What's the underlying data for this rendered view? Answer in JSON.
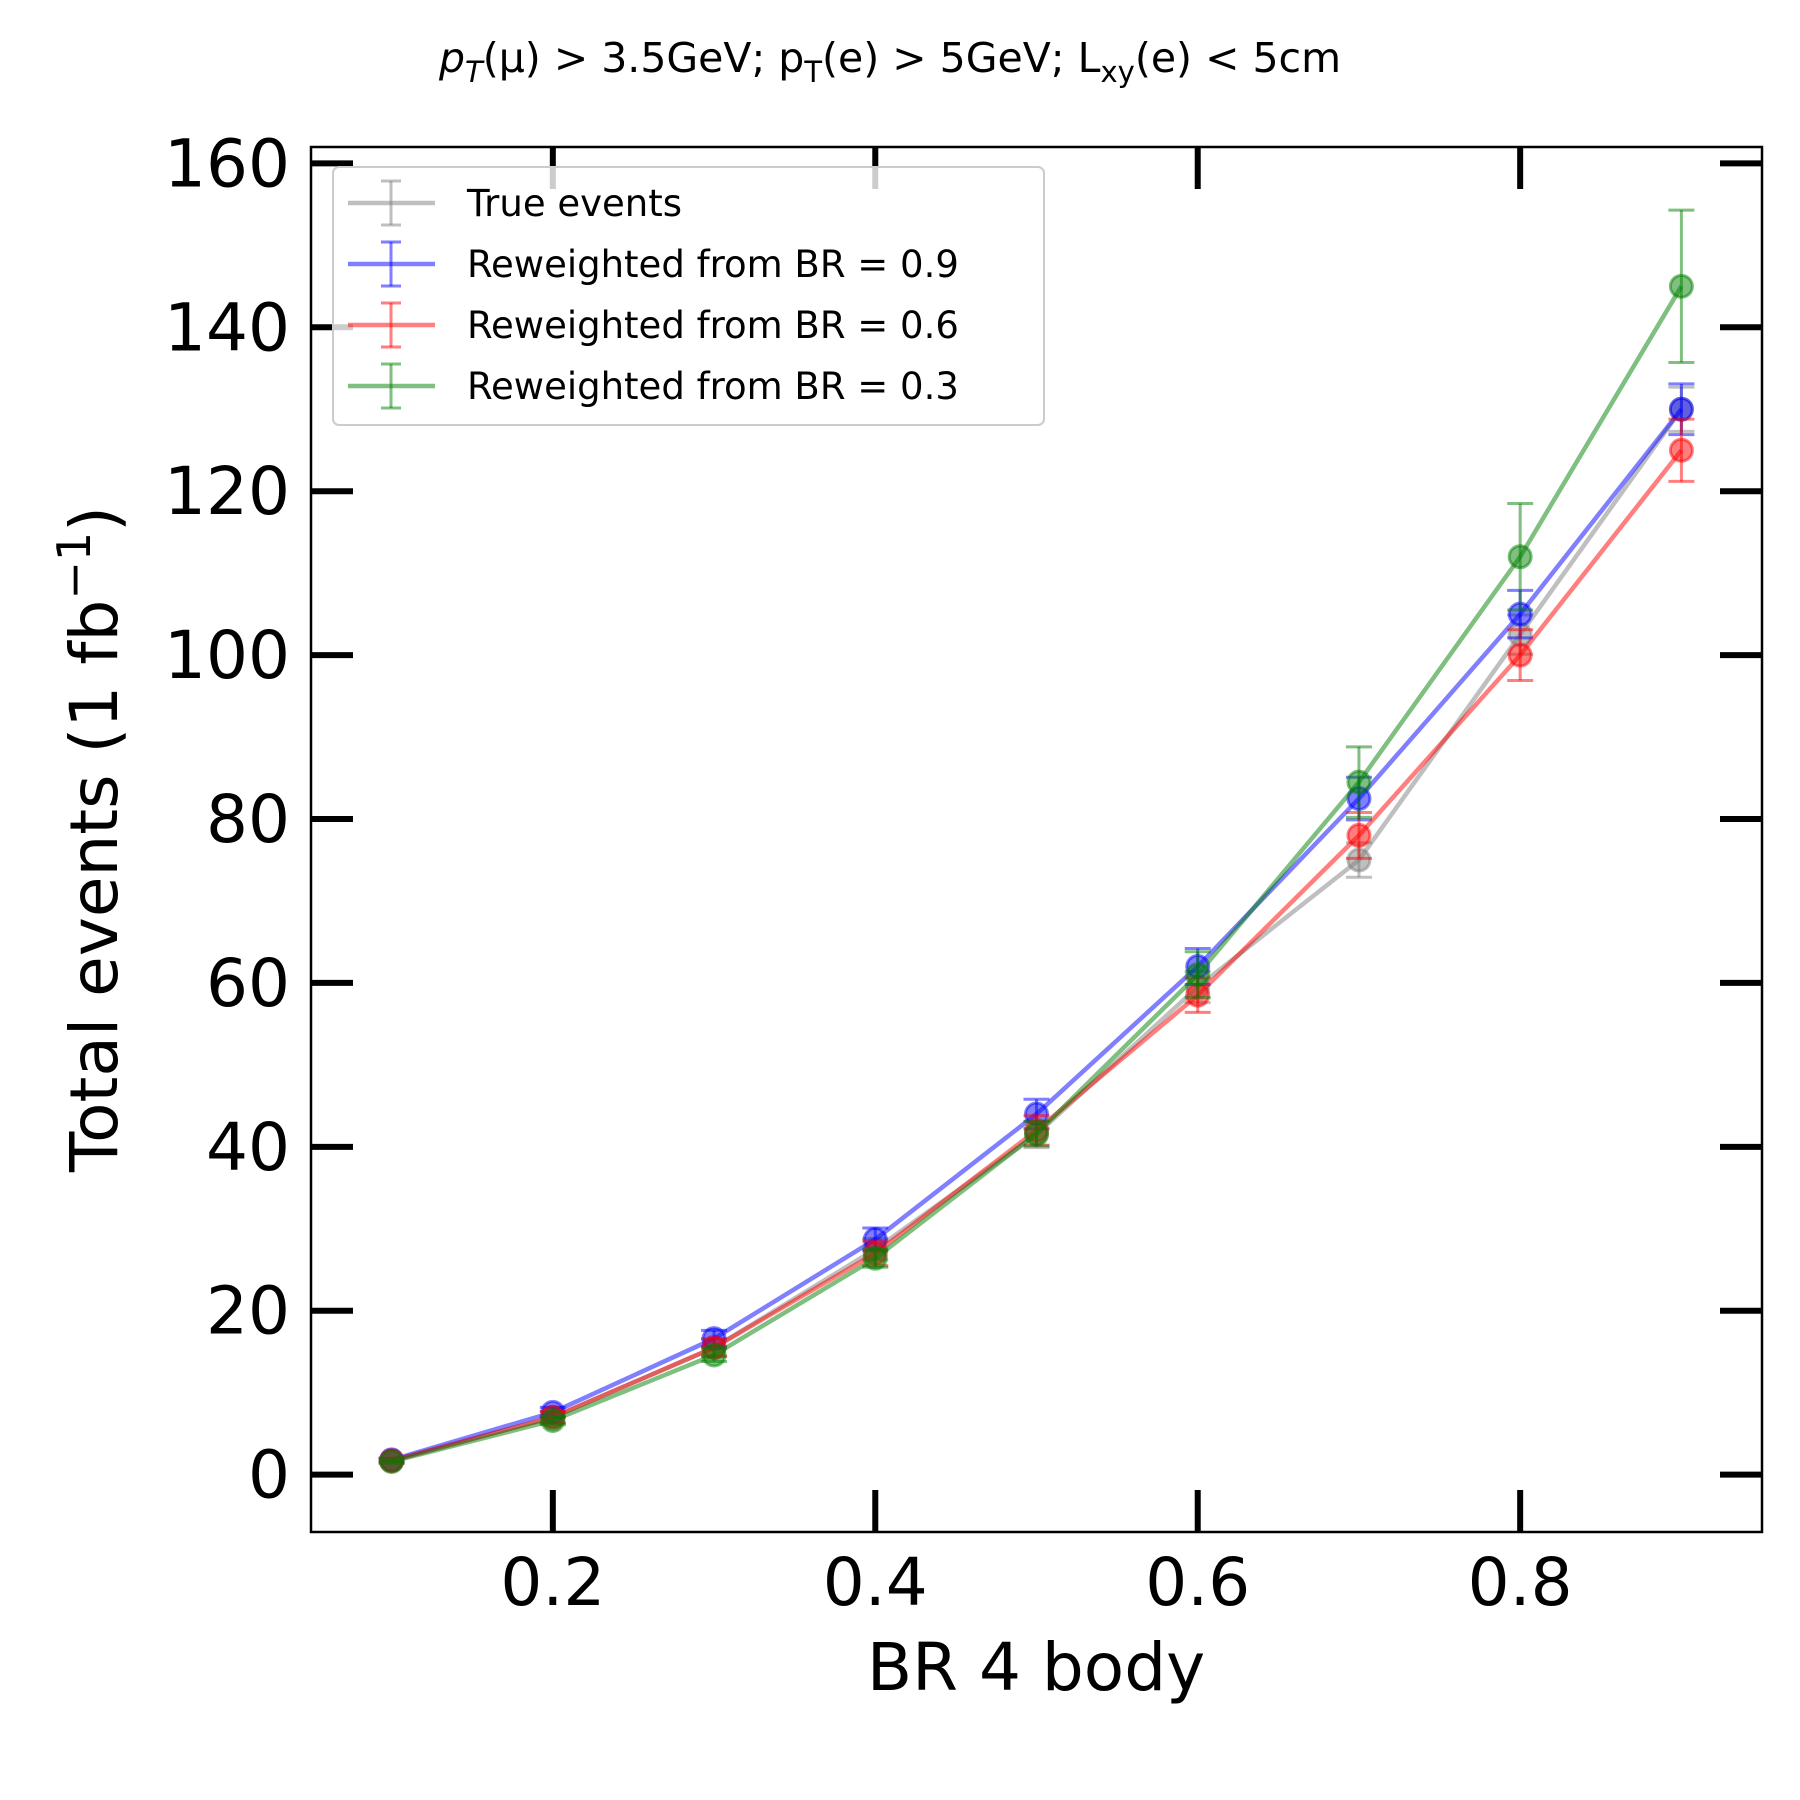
{
  "chart_data": {
    "type": "line",
    "title": "p_T(μ) > 3.5GeV; p_T(e) > 5GeV; L_xy(e) < 5cm",
    "title_parts": {
      "p1": "p",
      "s1": "T",
      "t1": "(μ) > 3.5GeV; p",
      "s2": "T",
      "t2": "(e) > 5GeV; L",
      "s3": "xy",
      "t3": "(e) < 5cm"
    },
    "xlabel": "BR 4 body",
    "ylabel": "Total events (1 fb",
    "ylabel_sup": "−1",
    "ylabel_close": ")",
    "xlim": [
      0.05,
      0.95
    ],
    "ylim": [
      -7,
      162
    ],
    "xticks": [
      0.2,
      0.4,
      0.6,
      0.8
    ],
    "xtick_labels": [
      "0.2",
      "0.4",
      "0.6",
      "0.8"
    ],
    "yticks": [
      0,
      20,
      40,
      60,
      80,
      100,
      120,
      140,
      160
    ],
    "ytick_labels": [
      "0",
      "20",
      "40",
      "60",
      "80",
      "100",
      "120",
      "140",
      "160"
    ],
    "grid": false,
    "legend_position": "top-left",
    "x": [
      0.1,
      0.2,
      0.3,
      0.4,
      0.5,
      0.6,
      0.7,
      0.8,
      0.9
    ],
    "series": [
      {
        "name": "True events",
        "color": "#808080",
        "values": [
          1.7,
          7.0,
          15.5,
          27.5,
          41.5,
          59.5,
          75.0,
          102.5,
          130.0
        ],
        "errors": [
          0.3,
          0.7,
          1.0,
          1.3,
          1.6,
          1.9,
          2.1,
          2.4,
          2.7
        ]
      },
      {
        "name": "Reweighted from BR = 0.9",
        "color": "#0000ff",
        "values": [
          1.8,
          7.6,
          16.6,
          28.7,
          44.0,
          62.0,
          82.5,
          105.0,
          130.0
        ],
        "errors": [
          0.2,
          0.6,
          1.0,
          1.4,
          1.8,
          2.2,
          2.6,
          2.9,
          3.1
        ]
      },
      {
        "name": "Reweighted from BR = 0.6",
        "color": "#ff0000",
        "values": [
          1.7,
          7.0,
          15.5,
          27.0,
          42.0,
          58.5,
          78.0,
          100.0,
          125.0
        ],
        "errors": [
          0.3,
          0.7,
          1.1,
          1.5,
          1.8,
          2.1,
          2.8,
          3.1,
          3.8
        ]
      },
      {
        "name": "Reweighted from BR = 0.3",
        "color": "#008000",
        "values": [
          1.6,
          6.6,
          14.6,
          26.4,
          41.6,
          61.0,
          84.5,
          112.0,
          145.0
        ],
        "errors": [
          0.2,
          0.5,
          0.8,
          1.1,
          1.5,
          2.8,
          4.3,
          6.5,
          9.3
        ]
      }
    ]
  }
}
